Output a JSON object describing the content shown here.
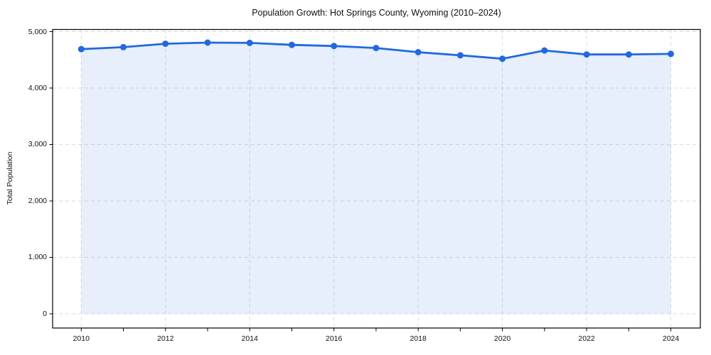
{
  "figure": {
    "title": "Population Growth: Hot Springs County, Wyoming (2010–2024)",
    "ylabel": "Total Population"
  },
  "chart_data": {
    "type": "area",
    "title": "Population Growth: Hot Springs County, Wyoming (2010–2024)",
    "xlabel": "",
    "ylabel": "Total Population",
    "x": [
      2010,
      2011,
      2012,
      2013,
      2014,
      2015,
      2016,
      2017,
      2018,
      2019,
      2020,
      2021,
      2022,
      2023,
      2024
    ],
    "series": [
      {
        "name": "Total Population",
        "values": [
          4690,
          4725,
          4785,
          4805,
          4800,
          4765,
          4745,
          4710,
          4635,
          4580,
          4520,
          4665,
          4595,
          4595,
          4605
        ]
      }
    ],
    "xlim": [
      2009.32,
      2024.7
    ],
    "ylim": [
      -252,
      5038
    ],
    "yticks": [
      0,
      1000,
      2000,
      3000,
      4000,
      5000
    ],
    "ytick_labels": [
      "0",
      "1,000",
      "2,000",
      "3,000",
      "4,000",
      "5,000"
    ],
    "xticks_minor": [
      2010,
      2011,
      2012,
      2013,
      2014,
      2015,
      2016,
      2017,
      2018,
      2019,
      2020,
      2021,
      2022,
      2023,
      2024
    ],
    "xticks_labeled": [
      2010,
      2012,
      2014,
      2016,
      2018,
      2020,
      2022,
      2024
    ],
    "grid": true,
    "grid_style": "dashed",
    "legend": false,
    "colors": {
      "line": "#2268e0",
      "marker": "#2268e0",
      "fill": "rgba(34, 104, 224, 0.11)",
      "grid": "#dadada",
      "spine": "#000000",
      "text": "#111111",
      "background": "#ffffff"
    },
    "marker": "circle",
    "marker_radius": 4.5,
    "line_width": 2.8
  }
}
